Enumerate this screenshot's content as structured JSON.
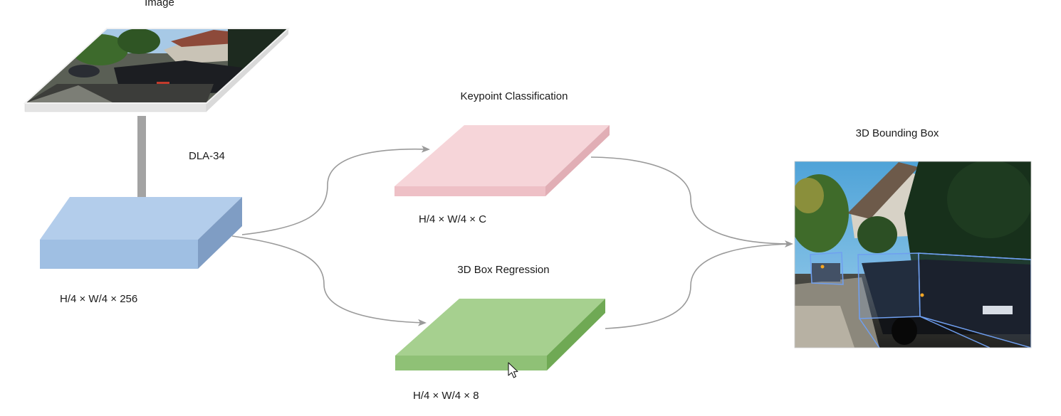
{
  "diagram": {
    "input_label": "Image",
    "backbone_label": "DLA-34",
    "backbone_output_dims": "H/4 × W/4 × 256",
    "keypoint_head": {
      "title": "Keypoint Classification",
      "dims": "H/4 × W/4 × C"
    },
    "regression_head": {
      "title": "3D Box Regression",
      "dims": "H/4 × W/4 × 8"
    },
    "output_label": "3D Bounding Box"
  },
  "colors": {
    "backbone_feature_map": "#a9c6e8",
    "keypoint_feature_map": "#f5d3d7",
    "regression_feature_map": "#a6d08f",
    "connector": "#9a9a9a",
    "bbox_wireframe": "#6f9ff0"
  },
  "icons": {
    "cursor": "mouse-pointer-icon"
  }
}
